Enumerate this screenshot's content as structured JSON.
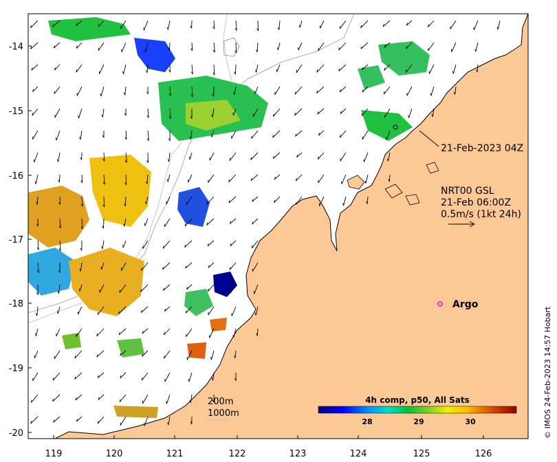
{
  "map": {
    "x_ticks": [
      "119",
      "120",
      "121",
      "122",
      "123",
      "124",
      "125",
      "126"
    ],
    "y_ticks": [
      "-14",
      "-15",
      "-16",
      "-17",
      "-18",
      "-19",
      "-20"
    ],
    "colors": {
      "land": "#fcc896",
      "sea": "#ffffff",
      "argo": "#ff00ff"
    }
  },
  "annotations": {
    "track_date": "21-Feb-2023 04Z",
    "current_product": "NRT00 GSL",
    "current_time": "21-Feb 06:00Z",
    "scale_label": "0.5m/s (1kt 24h)",
    "argo_label": "Argo",
    "isobath_200": "200m",
    "isobath_1000": "1000m"
  },
  "colorbar": {
    "title": "4h comp, p50, All Sats",
    "ticks": [
      "28",
      "29",
      "30"
    ]
  },
  "credit": "© IMOS 24-Feb-2023 14:57 Hobart"
}
